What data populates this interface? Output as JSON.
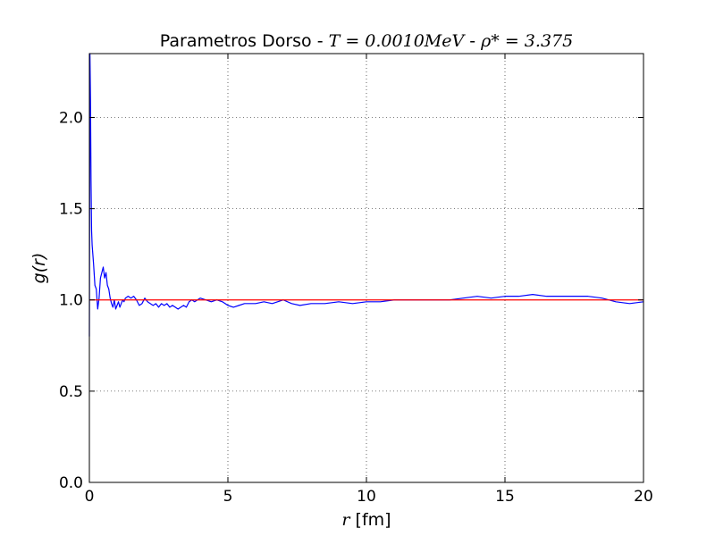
{
  "chart_data": {
    "type": "line",
    "title": {
      "prefix": "Parametros Dorso - ",
      "temp": "T = 0.0010MeV",
      "sep": " - ",
      "density": "ρ* = 3.375"
    },
    "xlabel": {
      "var": "r",
      "unit": " [fm]"
    },
    "ylabel": "g(r)",
    "xlim": [
      0,
      20
    ],
    "ylim": [
      0,
      2.35
    ],
    "xticks": [
      0,
      5,
      10,
      15,
      20
    ],
    "xtick_labels": [
      "0",
      "5",
      "10",
      "15",
      "20"
    ],
    "yticks": [
      0.0,
      0.5,
      1.0,
      1.5,
      2.0
    ],
    "ytick_labels": [
      "0.0",
      "0.5",
      "1.0",
      "1.5",
      "2.0"
    ],
    "grid": true,
    "series": [
      {
        "color": "#0000ff",
        "x": [
          0.0,
          0.02,
          0.04,
          0.06,
          0.08,
          0.1,
          0.15,
          0.2,
          0.25,
          0.3,
          0.35,
          0.4,
          0.45,
          0.5,
          0.55,
          0.6,
          0.65,
          0.7,
          0.75,
          0.8,
          0.85,
          0.9,
          0.95,
          1.0,
          1.05,
          1.1,
          1.15,
          1.2,
          1.25,
          1.3,
          1.4,
          1.5,
          1.6,
          1.7,
          1.8,
          1.9,
          2.0,
          2.1,
          2.2,
          2.3,
          2.4,
          2.5,
          2.6,
          2.7,
          2.8,
          2.9,
          3.0,
          3.1,
          3.2,
          3.3,
          3.4,
          3.5,
          3.6,
          3.7,
          3.8,
          3.9,
          4.0,
          4.2,
          4.4,
          4.6,
          4.8,
          5.0,
          5.2,
          5.4,
          5.6,
          5.8,
          6.0,
          6.3,
          6.6,
          7.0,
          7.3,
          7.6,
          8.0,
          8.5,
          9.0,
          9.5,
          10.0,
          10.5,
          11.0,
          11.5,
          12.0,
          12.5,
          13.0,
          13.5,
          14.0,
          14.5,
          15.0,
          15.5,
          16.0,
          16.5,
          17.0,
          17.5,
          18.0,
          18.5,
          19.0,
          19.5,
          20.0
        ],
        "y": [
          0.8,
          2.35,
          2.1,
          1.65,
          1.38,
          1.3,
          1.2,
          1.08,
          1.06,
          0.95,
          1.01,
          1.12,
          1.15,
          1.18,
          1.12,
          1.15,
          1.08,
          1.06,
          1.01,
          0.98,
          0.96,
          1.0,
          0.95,
          0.97,
          0.99,
          0.96,
          0.98,
          1.0,
          0.99,
          1.01,
          1.02,
          1.01,
          1.02,
          1.0,
          0.97,
          0.98,
          1.01,
          0.99,
          0.98,
          0.97,
          0.98,
          0.96,
          0.98,
          0.97,
          0.98,
          0.96,
          0.97,
          0.96,
          0.95,
          0.96,
          0.97,
          0.96,
          0.99,
          1.0,
          0.99,
          1.0,
          1.01,
          1.0,
          0.99,
          1.0,
          0.99,
          0.97,
          0.96,
          0.97,
          0.98,
          0.98,
          0.98,
          0.99,
          0.98,
          1.0,
          0.98,
          0.97,
          0.98,
          0.98,
          0.99,
          0.98,
          0.99,
          0.99,
          1.0,
          1.0,
          1.0,
          1.0,
          1.0,
          1.01,
          1.02,
          1.01,
          1.02,
          1.02,
          1.03,
          1.02,
          1.02,
          1.02,
          1.02,
          1.01,
          0.99,
          0.98,
          0.99
        ]
      },
      {
        "color": "#ff0000",
        "x": [
          0,
          20
        ],
        "y": [
          1.0,
          1.0
        ]
      }
    ]
  }
}
